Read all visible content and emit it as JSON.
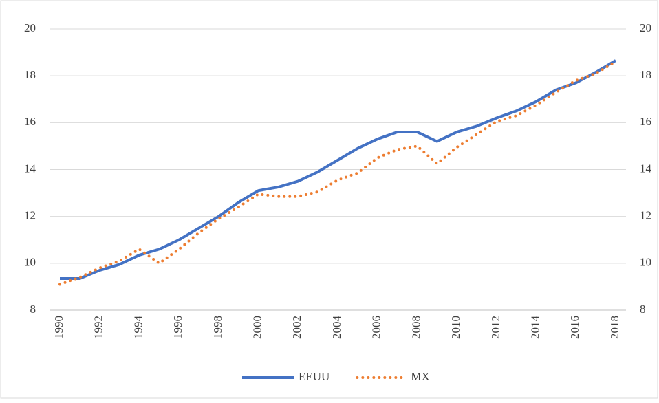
{
  "chart_data": {
    "type": "line",
    "categories": [
      "1990",
      null,
      "1992",
      null,
      "1994",
      null,
      "1996",
      null,
      "1998",
      null,
      "2000",
      null,
      "2002",
      null,
      "2004",
      null,
      "2006",
      null,
      "2008",
      null,
      "2010",
      null,
      "2012",
      null,
      "2014",
      null,
      "2016",
      null,
      "2018"
    ],
    "series": [
      {
        "name": "EEUU",
        "color": "#4472c4",
        "style": "solid",
        "values": [
          9.35,
          9.35,
          9.7,
          9.95,
          10.35,
          10.6,
          11.0,
          11.5,
          12.0,
          12.6,
          13.1,
          13.25,
          13.5,
          13.9,
          14.4,
          14.9,
          15.3,
          15.6,
          15.6,
          15.2,
          15.6,
          15.85,
          16.2,
          16.5,
          16.9,
          17.4,
          17.7,
          18.15,
          18.65
        ]
      },
      {
        "name": "MX",
        "color": "#ed7d31",
        "style": "dotted",
        "values": [
          9.1,
          9.4,
          9.8,
          10.1,
          10.6,
          10.0,
          10.6,
          11.3,
          11.9,
          12.4,
          12.95,
          12.85,
          12.85,
          13.05,
          13.55,
          13.85,
          14.5,
          14.85,
          15.0,
          14.25,
          14.95,
          15.5,
          16.05,
          16.3,
          16.75,
          17.3,
          17.8,
          18.1,
          18.6
        ]
      }
    ],
    "ylim": [
      8,
      20
    ],
    "yticks": [
      8,
      10,
      12,
      14,
      16,
      18,
      20
    ],
    "y2lim": [
      8,
      20
    ],
    "y2ticks": [
      8,
      10,
      12,
      14,
      16,
      18,
      20
    ],
    "grid": true,
    "legend": "bottom"
  }
}
